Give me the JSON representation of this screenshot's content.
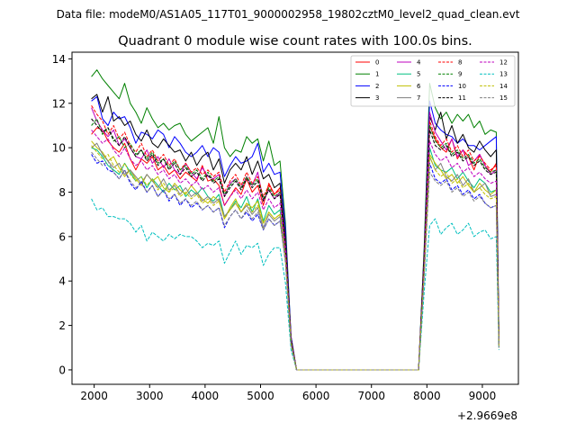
{
  "chart_data": {
    "type": "line",
    "suptitle": "Data file: modeM0/AS1A05_117T01_9000002958_19802cztM0_level2_quad_clean.evt",
    "title": "Quadrant 0 module wise count rates with 100.0s bins.",
    "xlabel": "",
    "ylabel": "",
    "x_offset_label": "+2.9669e8",
    "xlim": [
      1600,
      9650
    ],
    "ylim": [
      -0.65,
      14.3
    ],
    "xticks": [
      2000,
      3000,
      4000,
      5000,
      6000,
      7000,
      8000,
      9000
    ],
    "xtick_labels": [
      "2000",
      "3000",
      "4000",
      "5000",
      "6000",
      "7000",
      "8000",
      "9000"
    ],
    "yticks": [
      0,
      2,
      4,
      6,
      8,
      10,
      12,
      14
    ],
    "ytick_labels": [
      "0",
      "2",
      "4",
      "6",
      "8",
      "10",
      "12",
      "14"
    ],
    "legend_position": "upper right",
    "x": [
      1950,
      2050,
      2150,
      2250,
      2350,
      2450,
      2550,
      2650,
      2750,
      2850,
      2950,
      3050,
      3150,
      3250,
      3350,
      3450,
      3550,
      3650,
      3750,
      3850,
      3950,
      4050,
      4150,
      4250,
      4350,
      4450,
      4550,
      4650,
      4750,
      4850,
      4950,
      5050,
      5150,
      5250,
      5350,
      5450,
      5550,
      5650,
      5750,
      7850,
      7950,
      8050,
      8150,
      8250,
      8350,
      8450,
      8550,
      8650,
      8750,
      8850,
      8950,
      9050,
      9150,
      9250,
      9300
    ],
    "series": [
      {
        "name": "0",
        "color": "#ff0000",
        "dash": "solid",
        "values": [
          10.6,
          10.9,
          10.8,
          10.3,
          10.0,
          9.8,
          10.2,
          9.5,
          9.0,
          9.5,
          9.3,
          9.6,
          9.0,
          9.2,
          8.8,
          9.0,
          8.6,
          8.9,
          8.7,
          8.5,
          9.2,
          8.5,
          8.6,
          8.3,
          7.4,
          7.8,
          8.2,
          7.9,
          8.6,
          8.0,
          8.3,
          7.4,
          8.4,
          7.9,
          8.2,
          5.8,
          1.5,
          0.0,
          0.0,
          0.0,
          5.0,
          11.0,
          10.4,
          10.0,
          9.8,
          10.4,
          9.5,
          9.9,
          9.6,
          9.0,
          9.7,
          9.2,
          8.9,
          9.3,
          1.2
        ]
      },
      {
        "name": "1",
        "color": "#008000",
        "dash": "solid",
        "values": [
          13.2,
          13.5,
          13.1,
          12.8,
          12.5,
          12.2,
          12.9,
          12.0,
          11.6,
          11.1,
          11.8,
          11.3,
          10.9,
          11.1,
          10.8,
          11.0,
          11.1,
          10.6,
          10.3,
          10.5,
          10.7,
          10.9,
          10.2,
          11.4,
          10.0,
          9.6,
          9.9,
          9.8,
          10.5,
          10.2,
          10.4,
          9.4,
          10.3,
          9.2,
          9.4,
          6.6,
          1.4,
          0.0,
          0.0,
          0.0,
          5.5,
          12.9,
          11.8,
          11.3,
          11.6,
          11.1,
          11.5,
          11.2,
          11.5,
          10.9,
          11.2,
          10.6,
          10.8,
          10.7,
          1.3
        ]
      },
      {
        "name": "2",
        "color": "#0000ff",
        "dash": "solid",
        "values": [
          12.1,
          12.3,
          11.3,
          11.0,
          11.6,
          11.3,
          11.4,
          10.9,
          10.2,
          10.7,
          10.6,
          10.4,
          10.8,
          10.6,
          10.0,
          10.5,
          10.2,
          9.8,
          9.6,
          9.8,
          10.1,
          9.6,
          10.0,
          9.8,
          8.7,
          9.2,
          9.6,
          9.3,
          9.4,
          9.6,
          10.2,
          8.9,
          9.3,
          8.8,
          8.9,
          6.3,
          1.5,
          0.0,
          0.0,
          0.0,
          5.3,
          12.1,
          11.1,
          10.8,
          10.6,
          10.5,
          10.2,
          10.4,
          10.1,
          10.1,
          9.9,
          10.1,
          10.3,
          10.5,
          1.3
        ]
      },
      {
        "name": "3",
        "color": "#000000",
        "dash": "solid",
        "values": [
          12.2,
          12.4,
          11.6,
          12.3,
          11.2,
          11.4,
          11.0,
          11.2,
          10.6,
          10.3,
          10.8,
          10.2,
          10.0,
          10.4,
          10.1,
          9.8,
          9.9,
          9.4,
          9.8,
          9.2,
          9.6,
          9.8,
          9.0,
          9.5,
          8.4,
          9.0,
          9.3,
          9.0,
          9.6,
          8.8,
          9.4,
          8.6,
          8.8,
          8.2,
          8.4,
          5.9,
          1.4,
          0.0,
          0.0,
          0.0,
          5.2,
          11.4,
          10.8,
          11.6,
          10.4,
          11.0,
          10.2,
          10.6,
          10.0,
          9.8,
          10.3,
          9.9,
          9.6,
          9.9,
          1.2
        ]
      },
      {
        "name": "4",
        "color": "#bf00bf",
        "dash": "solid",
        "values": [
          11.8,
          11.2,
          10.8,
          10.5,
          10.8,
          10.1,
          10.4,
          10.0,
          9.6,
          9.5,
          9.9,
          9.3,
          9.6,
          9.1,
          9.5,
          9.0,
          8.8,
          9.3,
          8.9,
          8.6,
          9.1,
          8.7,
          8.6,
          8.8,
          7.8,
          8.4,
          8.6,
          8.2,
          8.7,
          8.3,
          8.9,
          7.6,
          8.1,
          7.7,
          8.0,
          5.6,
          1.3,
          0.0,
          0.0,
          0.0,
          4.9,
          11.6,
          10.7,
          10.3,
          9.9,
          10.4,
          9.6,
          9.9,
          9.2,
          9.4,
          9.7,
          9.2,
          8.8,
          9.0,
          1.2
        ]
      },
      {
        "name": "5",
        "color": "#00bf80",
        "dash": "solid",
        "values": [
          10.0,
          9.9,
          9.6,
          9.2,
          9.0,
          8.8,
          9.3,
          8.9,
          8.5,
          8.7,
          8.2,
          8.6,
          8.3,
          8.0,
          8.4,
          8.1,
          8.3,
          7.8,
          8.1,
          7.9,
          8.2,
          7.8,
          7.6,
          7.9,
          6.9,
          7.2,
          7.6,
          7.3,
          7.8,
          7.1,
          7.7,
          6.7,
          7.4,
          7.0,
          7.2,
          5.2,
          1.2,
          0.0,
          0.0,
          0.0,
          4.6,
          10.0,
          9.2,
          9.0,
          8.9,
          9.1,
          8.6,
          8.9,
          8.5,
          8.2,
          8.6,
          8.4,
          8.0,
          8.1,
          1.1
        ]
      },
      {
        "name": "6",
        "color": "#bfbf00",
        "dash": "solid",
        "values": [
          10.3,
          10.0,
          9.8,
          9.4,
          9.6,
          9.1,
          8.7,
          9.0,
          8.6,
          8.3,
          8.8,
          8.5,
          8.7,
          8.2,
          8.0,
          8.4,
          8.1,
          7.9,
          8.3,
          8.0,
          7.7,
          7.5,
          7.8,
          7.6,
          6.8,
          7.3,
          7.7,
          7.1,
          7.5,
          7.3,
          7.6,
          6.6,
          7.1,
          6.8,
          7.0,
          5.1,
          1.2,
          0.0,
          0.0,
          0.0,
          4.5,
          9.7,
          9.3,
          9.0,
          8.6,
          8.8,
          8.4,
          8.7,
          8.3,
          8.0,
          8.4,
          8.1,
          7.9,
          8.1,
          1.1
        ]
      },
      {
        "name": "7",
        "color": "#808080",
        "dash": "solid",
        "values": [
          10.0,
          10.2,
          9.7,
          9.4,
          9.1,
          9.3,
          8.8,
          9.0,
          8.7,
          8.4,
          8.8,
          8.5,
          8.2,
          8.6,
          8.1,
          8.3,
          7.9,
          8.2,
          7.8,
          8.0,
          7.6,
          7.8,
          7.5,
          7.7,
          6.9,
          7.2,
          7.5,
          7.1,
          7.4,
          7.0,
          7.3,
          6.4,
          7.0,
          6.7,
          6.9,
          5.0,
          1.2,
          0.0,
          0.0,
          0.0,
          4.4,
          9.6,
          9.0,
          9.3,
          8.7,
          8.5,
          8.8,
          8.3,
          8.6,
          8.0,
          8.2,
          8.4,
          7.8,
          7.9,
          1.1
        ]
      },
      {
        "name": "8",
        "color": "#ff0000",
        "dash": "dashed",
        "values": [
          11.9,
          11.5,
          11.2,
          10.6,
          11.0,
          10.4,
          10.7,
          10.1,
          9.8,
          10.2,
          9.6,
          9.9,
          9.4,
          9.7,
          9.2,
          9.5,
          9.0,
          9.3,
          8.9,
          9.1,
          8.8,
          9.0,
          8.7,
          8.9,
          8.0,
          8.5,
          8.8,
          8.3,
          8.9,
          8.4,
          8.7,
          7.8,
          8.3,
          7.9,
          8.1,
          5.7,
          1.3,
          0.0,
          0.0,
          0.0,
          5.0,
          11.2,
          10.5,
          10.1,
          10.4,
          9.8,
          10.1,
          9.6,
          9.9,
          9.4,
          9.6,
          9.3,
          9.0,
          9.2,
          1.2
        ]
      },
      {
        "name": "9",
        "color": "#008000",
        "dash": "dashed",
        "values": [
          11.0,
          11.3,
          10.6,
          10.9,
          10.3,
          10.5,
          10.0,
          10.2,
          9.7,
          9.9,
          9.5,
          9.8,
          9.3,
          9.5,
          9.1,
          9.4,
          9.0,
          9.2,
          8.8,
          9.0,
          8.6,
          8.9,
          8.5,
          8.7,
          7.9,
          8.3,
          8.6,
          8.2,
          8.7,
          8.3,
          8.6,
          7.7,
          8.2,
          7.8,
          8.0,
          5.6,
          1.3,
          0.0,
          0.0,
          0.0,
          4.9,
          11.0,
          10.3,
          10.0,
          10.2,
          9.7,
          9.9,
          9.5,
          9.7,
          9.3,
          9.5,
          9.1,
          8.9,
          9.0,
          1.2
        ]
      },
      {
        "name": "10",
        "color": "#0000ff",
        "dash": "dashed",
        "values": [
          9.7,
          9.3,
          9.4,
          9.0,
          8.9,
          8.6,
          9.0,
          8.4,
          8.1,
          8.5,
          8.0,
          8.3,
          7.8,
          8.1,
          7.6,
          7.9,
          7.4,
          7.7,
          7.3,
          7.5,
          7.2,
          7.4,
          7.1,
          7.3,
          6.4,
          6.9,
          7.2,
          6.8,
          7.1,
          6.7,
          7.0,
          6.3,
          6.8,
          6.5,
          6.7,
          4.9,
          1.2,
          0.0,
          0.0,
          0.0,
          4.3,
          9.3,
          8.6,
          8.4,
          8.6,
          8.1,
          8.3,
          7.9,
          8.1,
          7.7,
          7.9,
          7.5,
          7.3,
          7.4,
          1.0
        ]
      },
      {
        "name": "11",
        "color": "#000000",
        "dash": "dashed",
        "values": [
          11.3,
          11.0,
          10.7,
          10.9,
          10.4,
          10.1,
          10.5,
          10.0,
          9.6,
          9.9,
          9.4,
          9.7,
          9.2,
          9.5,
          9.0,
          9.3,
          8.8,
          9.1,
          8.7,
          8.9,
          8.5,
          8.8,
          8.4,
          8.6,
          7.8,
          8.2,
          8.5,
          8.1,
          8.6,
          8.2,
          8.5,
          7.6,
          8.1,
          7.7,
          7.9,
          5.5,
          1.3,
          0.0,
          0.0,
          0.0,
          4.8,
          10.8,
          10.1,
          9.9,
          10.1,
          9.6,
          9.8,
          9.4,
          9.6,
          9.2,
          9.4,
          9.0,
          8.8,
          8.9,
          1.2
        ]
      },
      {
        "name": "12",
        "color": "#bf00bf",
        "dash": "dashed",
        "values": [
          10.8,
          10.5,
          10.2,
          10.4,
          9.9,
          9.6,
          10.0,
          9.5,
          9.2,
          9.4,
          9.0,
          9.2,
          8.8,
          9.0,
          8.6,
          8.8,
          8.4,
          8.6,
          8.3,
          8.5,
          8.1,
          8.3,
          8.0,
          8.2,
          7.4,
          7.8,
          8.1,
          7.7,
          8.1,
          7.7,
          8.0,
          7.2,
          7.7,
          7.3,
          7.5,
          5.3,
          1.2,
          0.0,
          0.0,
          0.0,
          4.6,
          10.3,
          9.7,
          9.4,
          9.6,
          9.1,
          9.3,
          8.9,
          9.1,
          8.7,
          8.9,
          8.6,
          8.4,
          8.5,
          1.1
        ]
      },
      {
        "name": "13",
        "color": "#00bfbf",
        "dash": "dashed",
        "values": [
          7.7,
          7.2,
          7.3,
          6.9,
          6.9,
          6.8,
          6.8,
          6.6,
          6.2,
          6.5,
          5.8,
          6.2,
          6.0,
          5.8,
          6.1,
          5.9,
          6.1,
          6.0,
          6.0,
          5.8,
          5.5,
          5.7,
          5.6,
          5.8,
          4.8,
          5.3,
          5.8,
          5.2,
          5.6,
          5.5,
          5.7,
          4.7,
          5.2,
          5.5,
          5.5,
          3.9,
          0.9,
          0.0,
          0.0,
          0.0,
          3.5,
          6.5,
          6.8,
          6.1,
          6.4,
          6.6,
          6.1,
          6.3,
          6.6,
          6.0,
          6.2,
          6.3,
          5.9,
          6.0,
          0.9
        ]
      },
      {
        "name": "14",
        "color": "#bfbf00",
        "dash": "dashed",
        "values": [
          10.1,
          9.8,
          9.5,
          9.7,
          9.2,
          8.9,
          9.3,
          8.8,
          8.5,
          8.7,
          8.3,
          8.6,
          8.1,
          8.4,
          8.0,
          8.2,
          7.8,
          8.0,
          7.7,
          7.9,
          7.5,
          7.7,
          7.4,
          7.6,
          6.8,
          7.2,
          7.5,
          7.1,
          7.5,
          7.1,
          7.4,
          6.6,
          7.1,
          6.8,
          7.0,
          5.0,
          1.2,
          0.0,
          0.0,
          0.0,
          4.4,
          9.6,
          9.0,
          8.7,
          8.9,
          8.4,
          8.6,
          8.2,
          8.4,
          8.0,
          8.2,
          7.9,
          7.7,
          7.8,
          1.0
        ]
      },
      {
        "name": "15",
        "color": "#808080",
        "dash": "dashed",
        "values": [
          9.8,
          9.5,
          9.2,
          9.4,
          8.9,
          8.6,
          9.0,
          8.5,
          8.2,
          8.4,
          8.0,
          8.3,
          7.8,
          8.1,
          7.7,
          7.9,
          7.5,
          7.7,
          7.4,
          7.6,
          7.2,
          7.4,
          7.1,
          7.3,
          6.5,
          6.9,
          7.2,
          6.8,
          7.2,
          6.8,
          7.1,
          6.3,
          6.8,
          6.5,
          6.7,
          4.8,
          1.1,
          0.0,
          0.0,
          0.0,
          4.2,
          8.9,
          8.5,
          8.3,
          8.5,
          8.0,
          8.2,
          7.8,
          8.0,
          7.6,
          7.8,
          7.5,
          7.3,
          7.4,
          1.0
        ]
      }
    ]
  }
}
